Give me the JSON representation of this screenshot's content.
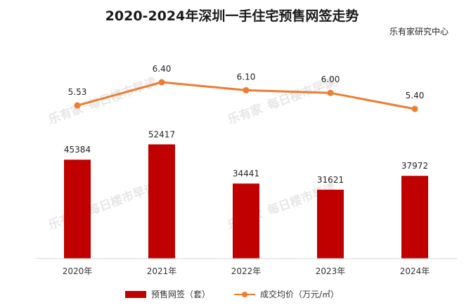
{
  "title": "2020-2024年深圳一手住宅预售网签走势",
  "source": "乐有家研究中心",
  "watermark": {
    "logo": "乐有家",
    "text": "每日楼市早读"
  },
  "colors": {
    "bar": "#c00000",
    "line": "#ed7d31",
    "axis": "#d9d9d9"
  },
  "chart_data": {
    "type": "bar",
    "categories": [
      "2020年",
      "2021年",
      "2022年",
      "2023年",
      "2024年"
    ],
    "series": [
      {
        "name": "预售网签（套）",
        "type": "bar",
        "values": [
          45384,
          52417,
          34441,
          31621,
          37972
        ],
        "value_labels": [
          "45384",
          "52417",
          "34441",
          "31621",
          "37972"
        ]
      },
      {
        "name": "成交均价（万元/㎡）",
        "type": "line",
        "values": [
          5.53,
          6.4,
          6.1,
          6.0,
          5.4
        ],
        "value_labels": [
          "5.53",
          "6.40",
          "6.10",
          "6.00",
          "5.40"
        ]
      }
    ],
    "legend_position": "bottom",
    "grid": false
  }
}
